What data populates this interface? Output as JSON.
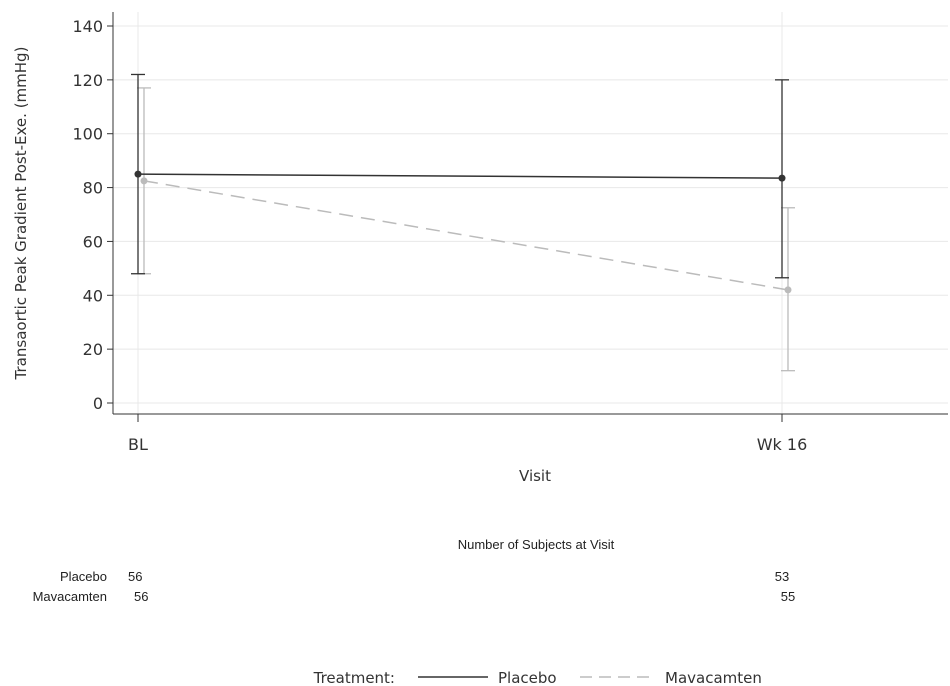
{
  "chart_data": {
    "type": "line",
    "title": "",
    "xlabel": "Visit",
    "ylabel": "Transaortic Peak Gradient Post-Exe. (mmHg)",
    "categories": [
      "BL",
      "Wk 16"
    ],
    "ylim": [
      0,
      140
    ],
    "yticks": [
      0,
      20,
      40,
      60,
      80,
      100,
      120,
      140
    ],
    "grid": true,
    "series": [
      {
        "name": "Placebo",
        "values": [
          85,
          83.5
        ],
        "lower": [
          48,
          46.5
        ],
        "upper": [
          122,
          120
        ],
        "color": "#333333",
        "dash": "solid"
      },
      {
        "name": "Mavacamten",
        "values": [
          82.5,
          42
        ],
        "lower": [
          48,
          12
        ],
        "upper": [
          117,
          72.5
        ],
        "color": "#bbbbbb",
        "dash": "dashed"
      }
    ],
    "legend": {
      "title": "Treatment:",
      "placement": "bottom-center"
    },
    "subjects_table": {
      "title": "Number of Subjects at Visit",
      "rows": [
        {
          "label": "Placebo",
          "counts": [
            "56",
            "53"
          ]
        },
        {
          "label": "Mavacamten",
          "counts": [
            "56",
            "55"
          ]
        }
      ]
    }
  }
}
